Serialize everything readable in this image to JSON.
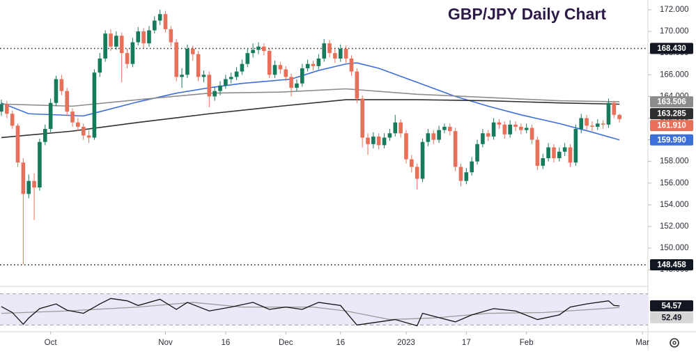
{
  "chart_data": [
    {
      "type": "candlestick",
      "title": "GBP/JPY Daily Chart",
      "title_color": "#2e1a47",
      "up_color": "#167a5c",
      "down_color": "#e8705a",
      "open": [
        162.6,
        163.3,
        162.4,
        161.3,
        157.9,
        155.0,
        156.2,
        155.6,
        159.8,
        161.0,
        163.4,
        165.6,
        164.5,
        162.6,
        161.6,
        161.2,
        160.4,
        160.2,
        166.2,
        167.5,
        169.8,
        168.6,
        169.6,
        168.0,
        167.0,
        169.0,
        170.0,
        168.9,
        170.1,
        171.0,
        171.6,
        170.2,
        169.0,
        165.8,
        166.0,
        168.4,
        167.9,
        165.8,
        166.0,
        164.0,
        164.5,
        165.0,
        165.6,
        165.8,
        166.3,
        167.0,
        168.0,
        168.3,
        168.6,
        168.2,
        166.0,
        166.9,
        166.5,
        165.8,
        164.8,
        165.2,
        166.6,
        167.0,
        166.8,
        167.5,
        168.9,
        168.0,
        167.5,
        168.4,
        167.5,
        166.3,
        163.8,
        160.2,
        159.6,
        160.3,
        159.5,
        160.2,
        160.6,
        161.6,
        160.6,
        158.2,
        157.5,
        156.4,
        159.8,
        160.6,
        160.0,
        160.9,
        161.2,
        160.8,
        157.5,
        156.2,
        157.0,
        158.0,
        159.6,
        160.6,
        160.3,
        161.6,
        161.4,
        160.5,
        161.4,
        161.2,
        160.9,
        161.1,
        160.0,
        157.6,
        158.3,
        159.3,
        158.3,
        158.9,
        159.3,
        157.9,
        161.0,
        162.0,
        161.3,
        161.2,
        161.5,
        161.4,
        163.4,
        162.3
      ],
      "high": [
        163.7,
        163.6,
        162.7,
        161.5,
        158.3,
        156.8,
        156.9,
        160.1,
        161.4,
        163.8,
        165.9,
        166.0,
        164.8,
        162.9,
        162.0,
        161.5,
        160.9,
        166.5,
        168.0,
        170.1,
        170.2,
        170.0,
        169.9,
        168.4,
        169.4,
        170.4,
        170.3,
        170.5,
        171.4,
        172.0,
        171.9,
        170.5,
        169.3,
        166.6,
        168.8,
        168.7,
        168.2,
        166.4,
        166.3,
        164.9,
        165.4,
        166.0,
        166.2,
        166.7,
        167.4,
        168.4,
        168.9,
        169.0,
        168.9,
        168.5,
        167.3,
        167.2,
        166.8,
        166.1,
        165.6,
        167.0,
        167.4,
        167.3,
        167.9,
        169.3,
        169.2,
        168.4,
        168.8,
        168.7,
        167.8,
        166.6,
        164.1,
        160.6,
        160.7,
        160.6,
        160.6,
        161.0,
        162.3,
        161.9,
        160.9,
        158.6,
        157.8,
        160.1,
        161.0,
        160.9,
        161.3,
        161.5,
        161.5,
        161.1,
        157.8,
        157.4,
        158.4,
        160.0,
        161.0,
        160.9,
        162.0,
        161.9,
        161.7,
        161.8,
        161.7,
        161.5,
        161.5,
        161.4,
        160.3,
        158.7,
        159.7,
        159.6,
        159.3,
        159.7,
        159.6,
        161.4,
        162.4,
        162.3,
        161.7,
        161.9,
        161.8,
        163.8,
        163.6,
        162.4
      ],
      "low": [
        162.2,
        162.0,
        161.0,
        157.5,
        148.5,
        154.6,
        152.6,
        155.3,
        159.5,
        160.7,
        163.1,
        164.1,
        162.2,
        161.2,
        160.8,
        160.0,
        159.7,
        160.0,
        165.8,
        167.2,
        168.2,
        168.3,
        165.3,
        166.6,
        166.7,
        168.7,
        168.5,
        168.6,
        169.8,
        170.6,
        169.9,
        168.6,
        165.4,
        164.8,
        165.7,
        167.3,
        165.4,
        165.3,
        163.0,
        163.6,
        164.1,
        164.7,
        165.2,
        165.5,
        166.0,
        166.7,
        167.6,
        167.9,
        167.8,
        165.7,
        165.7,
        166.1,
        165.4,
        164.0,
        164.5,
        164.9,
        166.3,
        166.4,
        166.5,
        167.2,
        167.6,
        167.1,
        167.2,
        167.1,
        165.9,
        163.4,
        159.3,
        158.6,
        159.2,
        159.1,
        159.2,
        159.9,
        160.3,
        160.2,
        157.8,
        157.0,
        155.4,
        156.1,
        159.4,
        159.6,
        159.7,
        160.6,
        160.4,
        157.1,
        155.7,
        155.9,
        156.7,
        157.7,
        159.3,
        159.9,
        160.0,
        161.0,
        160.1,
        160.2,
        160.8,
        160.5,
        160.6,
        159.6,
        157.2,
        157.3,
        158.0,
        157.9,
        158.0,
        158.5,
        157.5,
        157.6,
        160.6,
        160.9,
        160.8,
        160.9,
        161.0,
        161.1,
        162.0,
        161.6
      ],
      "close": [
        163.3,
        162.4,
        161.3,
        157.9,
        155.0,
        156.2,
        155.6,
        159.8,
        161.0,
        163.4,
        165.6,
        164.5,
        162.6,
        161.6,
        161.2,
        160.4,
        160.2,
        166.2,
        167.5,
        169.8,
        168.6,
        169.6,
        168.0,
        167.0,
        169.0,
        170.0,
        168.9,
        170.1,
        171.0,
        171.6,
        170.2,
        169.0,
        165.8,
        166.0,
        168.4,
        167.9,
        165.8,
        166.0,
        164.0,
        164.5,
        165.0,
        165.6,
        165.8,
        166.3,
        167.0,
        168.0,
        168.3,
        168.6,
        168.2,
        166.0,
        166.9,
        166.5,
        165.8,
        164.8,
        165.2,
        166.6,
        167.0,
        166.8,
        167.5,
        168.9,
        168.0,
        167.5,
        168.4,
        167.5,
        166.3,
        163.8,
        160.2,
        159.6,
        160.3,
        159.5,
        160.2,
        160.6,
        161.6,
        160.6,
        158.2,
        157.5,
        156.4,
        159.8,
        160.6,
        160.0,
        160.9,
        161.2,
        160.8,
        157.5,
        156.2,
        157.0,
        158.0,
        159.6,
        160.6,
        160.3,
        161.6,
        161.4,
        160.5,
        161.4,
        161.2,
        160.9,
        161.1,
        160.0,
        157.6,
        158.3,
        159.3,
        158.3,
        158.9,
        159.3,
        157.9,
        161.0,
        162.0,
        161.3,
        161.2,
        161.5,
        161.4,
        163.4,
        162.3,
        161.91
      ],
      "close_label": "161.910",
      "lines": [
        {
          "color": "#3d6fdb",
          "x": [
            0,
            5,
            15,
            25,
            32,
            38,
            44,
            53,
            58,
            63,
            65,
            69,
            76,
            83,
            89,
            95,
            102,
            108,
            113
          ],
          "values": [
            163.4,
            162.4,
            162.2,
            163.5,
            164.3,
            164.8,
            165.2,
            165.6,
            166.4,
            167.0,
            167.1,
            166.6,
            165.3,
            164.0,
            163.1,
            162.3,
            161.5,
            160.7,
            159.99
          ],
          "last_label": "159.990"
        },
        {
          "color": "#8c8c8c",
          "x": [
            0,
            13,
            25,
            38,
            51,
            63,
            76,
            89,
            102,
            113
          ],
          "values": [
            163.3,
            163.1,
            163.7,
            164.3,
            164.4,
            164.7,
            164.2,
            163.9,
            163.6,
            163.506
          ],
          "last_label": "163.506"
        },
        {
          "color": "#2f2f2f",
          "x": [
            0,
            13,
            25,
            38,
            51,
            63,
            76,
            89,
            102,
            113
          ],
          "values": [
            160.2,
            160.8,
            161.6,
            162.4,
            163.1,
            163.7,
            163.7,
            163.6,
            163.4,
            163.285
          ],
          "last_label": "163.285"
        }
      ],
      "hlines": [
        {
          "value": 168.43,
          "label": "168.430"
        },
        {
          "value": 148.458,
          "label": "148.458"
        }
      ],
      "xlim": [
        -0.25,
        118.2
      ],
      "xticks": [
        {
          "value": 9,
          "label": "Oct"
        },
        {
          "value": 30,
          "label": "Nov"
        },
        {
          "value": 41,
          "label": "16"
        },
        {
          "value": 52,
          "label": "Dec"
        },
        {
          "value": 62,
          "label": "16"
        },
        {
          "value": 74,
          "label": "2023"
        },
        {
          "value": 85,
          "label": "17"
        },
        {
          "value": 96,
          "label": "Feb"
        },
        {
          "value": 117.2,
          "label": "Mar"
        }
      ],
      "ylim": [
        146.66,
        172.9
      ],
      "yticks": [
        {
          "value": 148,
          "label": "148.000"
        },
        {
          "value": 150,
          "label": "150.000"
        },
        {
          "value": 152,
          "label": "152.000"
        },
        {
          "value": 154,
          "label": "154.000"
        },
        {
          "value": 156,
          "label": "156.000"
        },
        {
          "value": 158,
          "label": "158.000"
        },
        {
          "value": 160,
          "label": "160.000"
        },
        {
          "value": 162,
          "label": "162.000"
        },
        {
          "value": 164,
          "label": "164.000"
        },
        {
          "value": 166,
          "label": "166.000"
        },
        {
          "value": 168,
          "label": "168.000"
        },
        {
          "value": 170,
          "label": "170.000"
        },
        {
          "value": 172,
          "label": "172.000"
        }
      ],
      "grid": false
    },
    {
      "type": "line",
      "series": [
        {
          "color": "#111111",
          "x": [
            0,
            2,
            4,
            5,
            7,
            10,
            12,
            15,
            18,
            20,
            23,
            25,
            29,
            32,
            34,
            38,
            42,
            46,
            49,
            52,
            55,
            58,
            62,
            65,
            69,
            72,
            76,
            77,
            83,
            86,
            90,
            94,
            98,
            102,
            104,
            107,
            111,
            112,
            113
          ],
          "values": [
            53.6,
            46,
            31,
            39,
            51,
            57,
            49,
            45,
            57,
            64,
            61,
            55,
            63,
            50,
            59,
            48,
            53,
            59,
            50,
            53,
            50,
            59,
            55,
            30,
            34,
            37,
            29,
            45,
            34,
            43,
            51,
            48,
            37,
            43,
            53,
            57,
            61,
            55,
            54.57
          ],
          "last_label": "54.57"
        },
        {
          "color": "#9a9a9a",
          "x": [
            0,
            12,
            25,
            35,
            44,
            57,
            63,
            71,
            79,
            89,
            99,
            108,
            113
          ],
          "values": [
            45,
            48,
            53,
            59,
            53,
            53,
            48,
            37,
            39,
            45,
            46,
            50,
            52.49
          ],
          "last_label": "52.49"
        }
      ],
      "xlim": [
        -0.25,
        118.2
      ],
      "ylim": [
        25,
        75
      ],
      "bands": [
        30,
        70
      ],
      "band_color": "#ece8f7"
    }
  ]
}
